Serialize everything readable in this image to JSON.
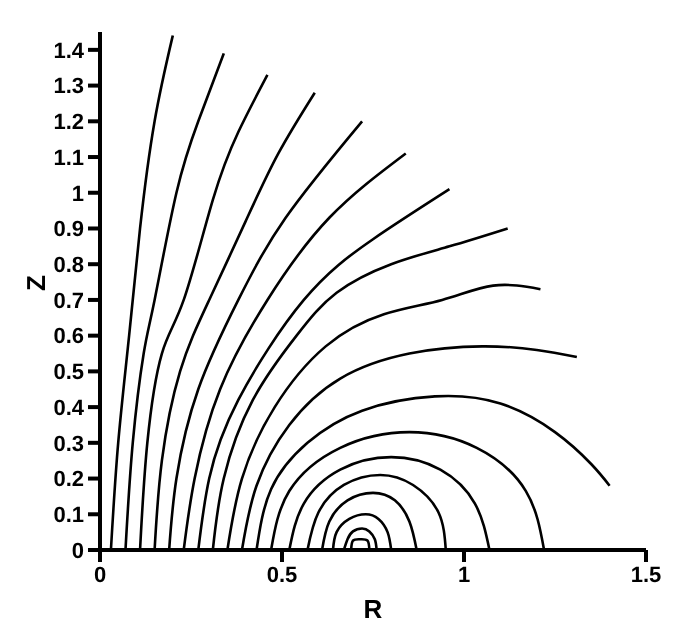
{
  "chart_data": {
    "type": "line",
    "xlabel": "R",
    "ylabel": "Z",
    "xlim": [
      0,
      1.5
    ],
    "ylim": [
      0,
      1.45
    ],
    "xticks": [
      0,
      0.5,
      1,
      1.5
    ],
    "yticks": [
      0,
      0.1,
      0.2,
      0.3,
      0.4,
      0.5,
      0.6,
      0.7,
      0.8,
      0.9,
      1,
      1.1,
      1.2,
      1.3,
      1.4
    ],
    "grid": false,
    "marker": "none",
    "line_style": "solid",
    "series": [
      {
        "color": "#000000",
        "x": [
          0.03,
          0.05,
          0.08,
          0.11,
          0.15,
          0.2
        ],
        "values": [
          0,
          0.3,
          0.6,
          0.9,
          1.2,
          1.44
        ]
      },
      {
        "color": "#000000",
        "x": [
          0.07,
          0.09,
          0.12,
          0.15,
          0.21,
          0.27,
          0.34
        ],
        "values": [
          0,
          0.3,
          0.55,
          0.7,
          1.0,
          1.2,
          1.39
        ]
      },
      {
        "color": "#000000",
        "x": [
          0.11,
          0.13,
          0.17,
          0.23,
          0.31,
          0.38,
          0.46
        ],
        "values": [
          0,
          0.3,
          0.55,
          0.7,
          0.98,
          1.17,
          1.33
        ]
      },
      {
        "color": "#000000",
        "x": [
          0.15,
          0.17,
          0.22,
          0.3,
          0.4,
          0.49,
          0.59
        ],
        "values": [
          0,
          0.25,
          0.5,
          0.7,
          0.92,
          1.11,
          1.28
        ]
      },
      {
        "color": "#000000",
        "x": [
          0.19,
          0.21,
          0.27,
          0.38,
          0.51,
          0.72
        ],
        "values": [
          0,
          0.2,
          0.45,
          0.7,
          0.93,
          1.2
        ]
      },
      {
        "color": "#000000",
        "x": [
          0.23,
          0.26,
          0.33,
          0.46,
          0.63,
          0.84
        ],
        "values": [
          0,
          0.2,
          0.45,
          0.7,
          0.93,
          1.11
        ]
      },
      {
        "color": "#000000",
        "x": [
          0.27,
          0.3,
          0.38,
          0.56,
          0.75,
          0.96
        ],
        "values": [
          0,
          0.2,
          0.42,
          0.7,
          0.87,
          1.01
        ]
      },
      {
        "color": "#000000",
        "x": [
          0.31,
          0.34,
          0.42,
          0.54,
          0.65,
          0.8,
          0.96,
          1.12
        ],
        "values": [
          0,
          0.2,
          0.42,
          0.6,
          0.72,
          0.8,
          0.85,
          0.9
        ]
      },
      {
        "color": "#000000",
        "x": [
          0.35,
          0.39,
          0.48,
          0.62,
          0.78,
          0.94,
          1.08,
          1.21
        ],
        "values": [
          0,
          0.2,
          0.4,
          0.57,
          0.66,
          0.7,
          0.74,
          0.73
        ]
      },
      {
        "color": "#000000",
        "x": [
          0.39,
          0.43,
          0.52,
          0.66,
          0.85,
          1.05,
          1.2,
          1.31
        ],
        "values": [
          0,
          0.18,
          0.35,
          0.48,
          0.55,
          0.57,
          0.56,
          0.54
        ]
      },
      {
        "color": "#000000",
        "x": [
          0.43,
          0.47,
          0.57,
          0.72,
          0.92,
          1.1,
          1.25,
          1.35,
          1.4
        ],
        "values": [
          0,
          0.17,
          0.3,
          0.39,
          0.43,
          0.41,
          0.33,
          0.24,
          0.18
        ]
      },
      {
        "color": "#000000",
        "x": [
          0.47,
          0.52,
          0.66,
          0.85,
          1.035,
          1.17,
          1.22
        ],
        "values": [
          0,
          0.165,
          0.286,
          0.33,
          0.286,
          0.165,
          0
        ]
      },
      {
        "color": "#000000",
        "x": [
          0.52,
          0.56,
          0.66,
          0.8,
          0.935,
          1.03,
          1.07
        ],
        "values": [
          0,
          0.13,
          0.225,
          0.26,
          0.225,
          0.13,
          0
        ]
      },
      {
        "color": "#000000",
        "x": [
          0.57,
          0.6,
          0.67,
          0.77,
          0.86,
          0.93,
          0.95
        ],
        "values": [
          0,
          0.105,
          0.182,
          0.21,
          0.182,
          0.105,
          0
        ]
      },
      {
        "color": "#000000",
        "x": [
          0.61,
          0.63,
          0.68,
          0.75,
          0.81,
          0.85,
          0.87
        ],
        "values": [
          0,
          0.08,
          0.139,
          0.16,
          0.139,
          0.08,
          0
        ]
      },
      {
        "color": "#000000",
        "x": [
          0.64,
          0.65,
          0.685,
          0.73,
          0.765,
          0.79,
          0.8
        ],
        "values": [
          0,
          0.05,
          0.087,
          0.1,
          0.087,
          0.05,
          0
        ]
      },
      {
        "color": "#000000",
        "x": [
          0.67,
          0.68,
          0.695,
          0.72,
          0.74,
          0.755,
          0.76
        ],
        "values": [
          0,
          0.03,
          0.052,
          0.06,
          0.052,
          0.03,
          0
        ]
      },
      {
        "color": "#000000",
        "x": [
          0.69,
          0.695,
          0.715,
          0.735,
          0.74
        ],
        "values": [
          0,
          0.026,
          0.03,
          0.026,
          0
        ]
      }
    ]
  }
}
